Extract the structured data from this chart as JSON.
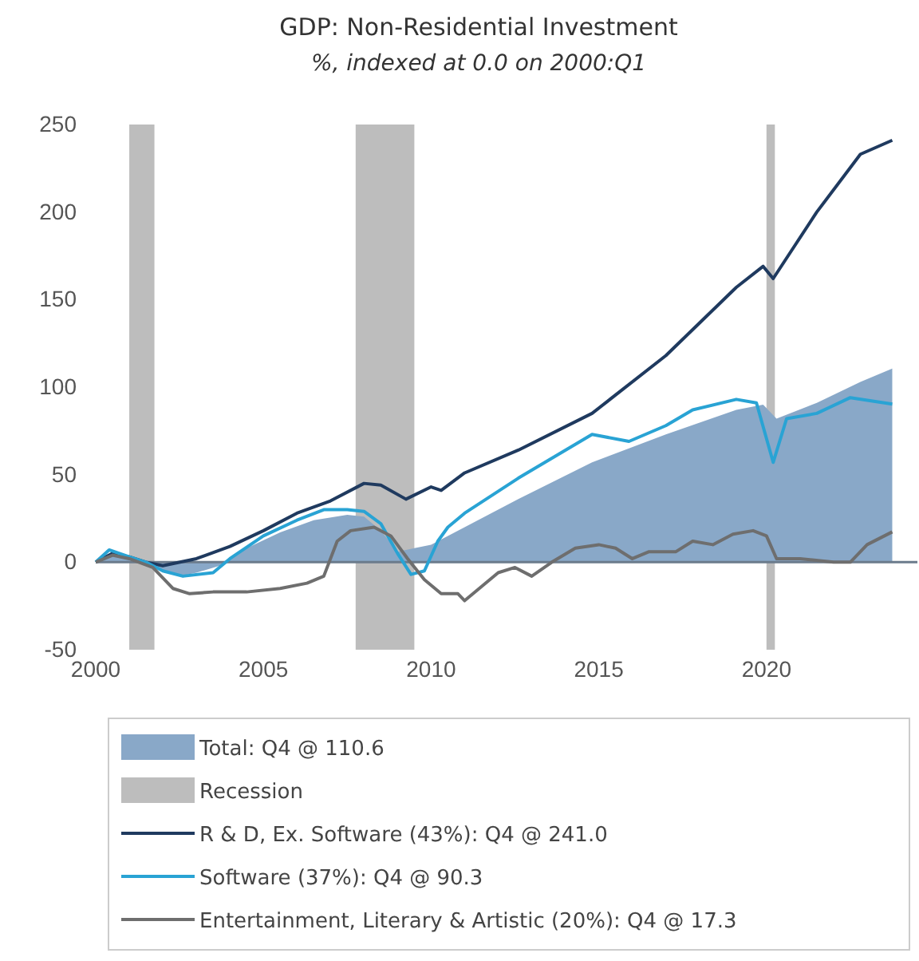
{
  "chart_data": {
    "type": "line",
    "title": "GDP: Non-Residential Investment",
    "subtitle": "%, indexed at 0.0 on 2000:Q1",
    "xlim": [
      2000,
      2024.5
    ],
    "xticks": [
      2000,
      2005,
      2010,
      2015,
      2020
    ],
    "ylim": [
      -50,
      250
    ],
    "yticks": [
      -50,
      0,
      50,
      100,
      150,
      200,
      250
    ],
    "grid": false,
    "legend": "bottom",
    "bands": [
      {
        "axis": "x",
        "from": 2001,
        "to": 2001.75,
        "label": "Recession",
        "color": "#bdbdbd"
      },
      {
        "axis": "x",
        "from": 2007.75,
        "to": 2009.5,
        "color": "#bdbdbd"
      },
      {
        "axis": "x",
        "from": 2020,
        "to": 2020.25,
        "color": "#bdbdbd"
      }
    ],
    "ref_lines": [
      {
        "axis": "y",
        "value": 0,
        "color": "#6b7b8c"
      }
    ],
    "series": [
      {
        "type": "area",
        "name": "Total: Q4 @ 110.6",
        "color": "#89a8c8",
        "x": [
          2000,
          2000.5,
          2001,
          2001.7,
          2002.5,
          2003,
          2003.7,
          2004.5,
          2005.5,
          2006.5,
          2007.5,
          2008,
          2008.5,
          2009,
          2009.5,
          2010,
          2010.5,
          2011,
          2012.6,
          2014.8,
          2017,
          2019.1,
          2019.9,
          2020.3,
          2021.5,
          2022.8,
          2023.75
        ],
        "values": [
          0,
          5,
          3,
          -3,
          -8,
          -6,
          -2,
          8,
          17,
          24,
          27,
          26,
          18,
          6,
          8,
          10,
          15,
          20,
          36,
          57,
          73,
          87,
          90,
          82,
          91,
          103,
          110.6
        ]
      },
      {
        "name": "R & D, Ex. Software (43%): Q4 @ 241.0",
        "color": "#1f3a5f",
        "x": [
          2000,
          2000.5,
          2001,
          2001.5,
          2002,
          2003,
          2004,
          2005,
          2006,
          2007,
          2008,
          2008.5,
          2009.25,
          2010,
          2010.3,
          2011,
          2012.6,
          2014.8,
          2017,
          2019.1,
          2019.9,
          2020.2,
          2021.5,
          2022.8,
          2023.75
        ],
        "values": [
          0,
          5,
          3,
          0,
          -2,
          2,
          9,
          18,
          28,
          35,
          45,
          44,
          36,
          43,
          41,
          51,
          64,
          85,
          118,
          157,
          169,
          162,
          200,
          233,
          241.0
        ]
      },
      {
        "name": "Software (37%): Q4 @ 90.3",
        "color": "#29a3d4",
        "x": [
          2000,
          2000.4,
          2001,
          2001.5,
          2002,
          2002.6,
          2003.5,
          2004,
          2005,
          2006,
          2006.8,
          2007.5,
          2008,
          2008.5,
          2009,
          2009.4,
          2009.8,
          2010.2,
          2010.5,
          2011,
          2012.6,
          2014.8,
          2015.9,
          2017,
          2017.8,
          2019.1,
          2019.7,
          2020.2,
          2020.6,
          2021.5,
          2022.5,
          2023.75
        ],
        "values": [
          0,
          7,
          3,
          0,
          -5,
          -8,
          -6,
          2,
          15,
          24,
          30,
          30,
          29,
          22,
          5,
          -7,
          -5,
          12,
          20,
          28,
          48,
          73,
          69,
          78,
          87,
          93,
          91,
          57,
          82,
          85,
          94,
          90.3
        ]
      },
      {
        "name": "Entertainment, Literary & Artistic (20%): Q4 @ 17.3",
        "color": "#6e6e6e",
        "x": [
          2000,
          2000.5,
          2001,
          2001.7,
          2002.3,
          2002.8,
          2003.5,
          2004.5,
          2005.5,
          2006.3,
          2006.8,
          2007.2,
          2007.6,
          2008.3,
          2008.8,
          2009.3,
          2009.8,
          2010.3,
          2010.8,
          2011,
          2011.5,
          2012,
          2012.5,
          2013,
          2013.6,
          2014.3,
          2015,
          2015.5,
          2016,
          2016.5,
          2017.3,
          2017.8,
          2018.4,
          2019,
          2019.6,
          2020,
          2020.3,
          2021,
          2022,
          2022.5,
          2023,
          2023.75
        ],
        "values": [
          0,
          4,
          2,
          -3,
          -15,
          -18,
          -17,
          -17,
          -15,
          -12,
          -8,
          12,
          18,
          20,
          15,
          2,
          -10,
          -18,
          -18,
          -22,
          -14,
          -6,
          -3,
          -8,
          0,
          8,
          10,
          8,
          2,
          6,
          6,
          12,
          10,
          16,
          18,
          15,
          2,
          2,
          0,
          0,
          10,
          17.3
        ]
      }
    ]
  }
}
